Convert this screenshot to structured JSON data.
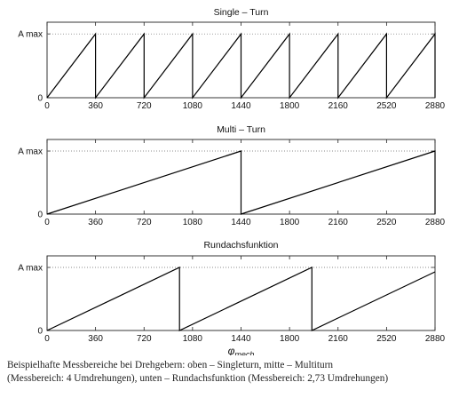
{
  "chart_data": [
    {
      "type": "line",
      "title": "Single – Turn",
      "ytick_labels": [
        "0",
        "A max"
      ],
      "xticks": [
        0,
        360,
        720,
        1080,
        1440,
        1800,
        2160,
        2520,
        2880
      ],
      "xlim": [
        0,
        2880
      ],
      "ylim": [
        0,
        1
      ],
      "series": [
        {
          "x": [
            0,
            360,
            360,
            720,
            720,
            1080,
            1080,
            1440,
            1440,
            1800,
            1800,
            2160,
            2160,
            2520,
            2520,
            2880,
            2880
          ],
          "y": [
            0,
            1,
            0,
            1,
            0,
            1,
            0,
            1,
            0,
            1,
            0,
            1,
            0,
            1,
            0,
            1,
            0
          ]
        }
      ]
    },
    {
      "type": "line",
      "title": "Multi – Turn",
      "ytick_labels": [
        "0",
        "A max"
      ],
      "xticks": [
        0,
        360,
        720,
        1080,
        1440,
        1800,
        2160,
        2520,
        2880
      ],
      "xlim": [
        0,
        2880
      ],
      "ylim": [
        0,
        1
      ],
      "series": [
        {
          "x": [
            0,
            1440,
            1440,
            2880,
            2880
          ],
          "y": [
            0,
            1,
            0,
            1,
            0
          ]
        }
      ]
    },
    {
      "type": "line",
      "title": "Rundachsfunktion",
      "ytick_labels": [
        "0",
        "A max"
      ],
      "xticks": [
        0,
        360,
        720,
        1080,
        1440,
        1800,
        2160,
        2520,
        2880
      ],
      "xlim": [
        0,
        2880
      ],
      "ylim": [
        0,
        1
      ],
      "xlabel": "φmech",
      "series": [
        {
          "x": [
            0,
            983,
            983,
            1966,
            1966,
            2880
          ],
          "y": [
            0,
            1,
            0,
            1,
            0,
            0.93
          ]
        }
      ]
    }
  ],
  "caption": {
    "line1": "Beispielhafte Messbereiche bei Drehgebern: oben – Singleturn, mitte – Multiturn",
    "line2": "(Messbereich: 4 Umdrehungen), unten – Rundachsfunktion (Messbereich: 2,73 Umdrehungen)"
  }
}
